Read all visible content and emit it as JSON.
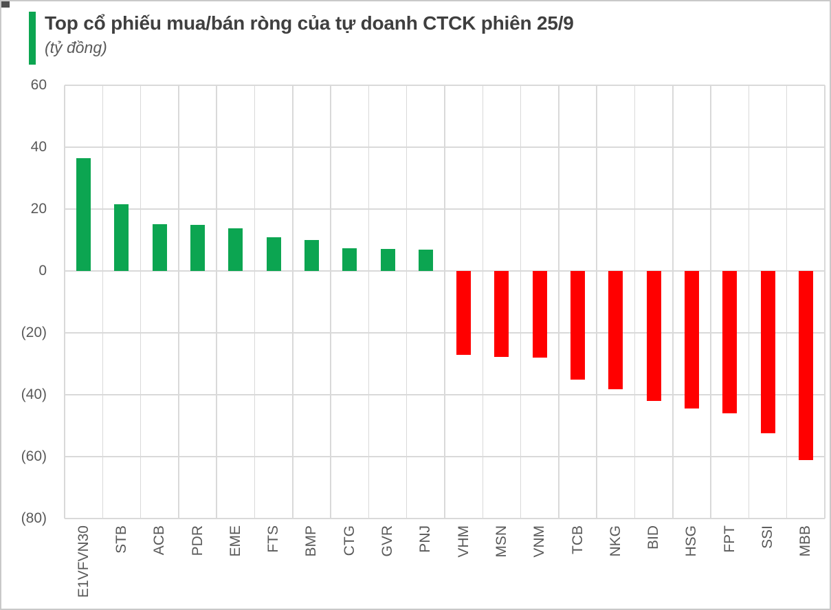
{
  "chart_data": {
    "type": "bar",
    "title": "Top cổ phiếu mua/bán ròng của tự doanh CTCK phiên 25/9",
    "unit": "(tỷ đồng)",
    "categories": [
      "E1VFVN30",
      "STB",
      "ACB",
      "PDR",
      "EME",
      "FTS",
      "BMP",
      "CTG",
      "GVR",
      "PNJ",
      "VHM",
      "MSN",
      "VNM",
      "TCB",
      "NKG",
      "BID",
      "HSG",
      "FPT",
      "SSI",
      "MBB"
    ],
    "values": [
      36.5,
      21.5,
      15.2,
      14.8,
      13.8,
      11,
      10,
      7.3,
      7.2,
      6.8,
      -27.2,
      -27.7,
      -28.1,
      -35.2,
      -38.3,
      -42,
      -44.5,
      -46.1,
      -52.5,
      -61
    ],
    "xlabel": "",
    "ylabel": "",
    "ylim": [
      -80,
      60
    ],
    "yticks": [
      {
        "value": 60,
        "label": "60"
      },
      {
        "value": 40,
        "label": "40"
      },
      {
        "value": 20,
        "label": "20"
      },
      {
        "value": 0,
        "label": "0"
      },
      {
        "value": -20,
        "label": "(20)"
      },
      {
        "value": -40,
        "label": "(40)"
      },
      {
        "value": -60,
        "label": "(60)"
      },
      {
        "value": -80,
        "label": "(80)"
      }
    ],
    "grid": "on",
    "legend": "none",
    "colors": {
      "positive": "#0ca551",
      "negative": "#ff0000",
      "gridline": "#d9d9d9",
      "axis_text": "#595959",
      "title_text": "#3f3f3f",
      "accent_bar": "#0ca551"
    }
  }
}
